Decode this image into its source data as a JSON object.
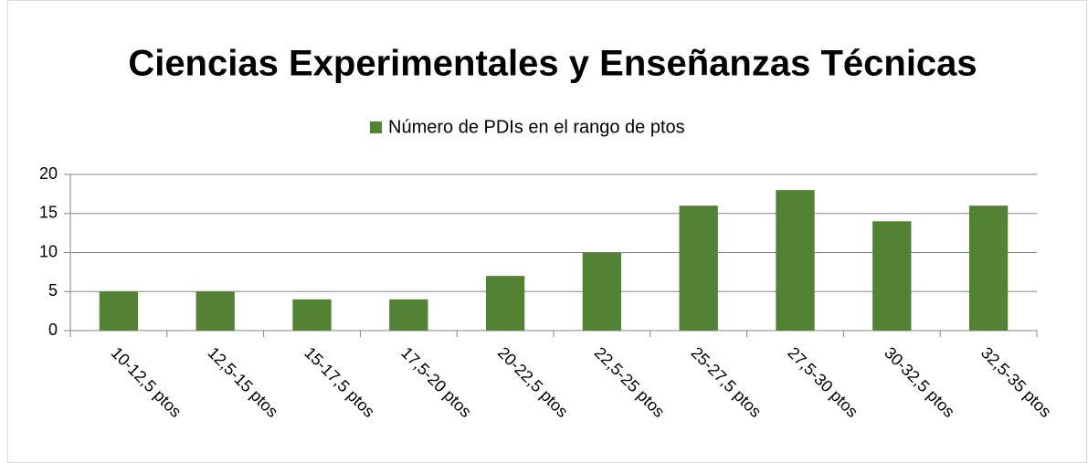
{
  "chart_data": {
    "type": "bar",
    "title": "Ciencias Experimentales y Enseñanzas Técnicas",
    "categories": [
      "10-12,5 ptos",
      "12,5-15 ptos",
      "15-17,5 ptos",
      "17,5-20 ptos",
      "20-22,5 ptos",
      "22,5-25 ptos",
      "25-27,5 ptos",
      "27,5-30 ptos",
      "30-32,5 ptos",
      "32,5-35 ptos"
    ],
    "series": [
      {
        "name": "Número de PDIs en el rango de ptos",
        "color": "#548235",
        "values": [
          5,
          5,
          4,
          4,
          7,
          10,
          16,
          18,
          14,
          16
        ]
      }
    ],
    "ylim": [
      0,
      20
    ],
    "yticks": [
      0,
      5,
      10,
      15,
      20
    ],
    "grid": true,
    "legend": "top"
  }
}
